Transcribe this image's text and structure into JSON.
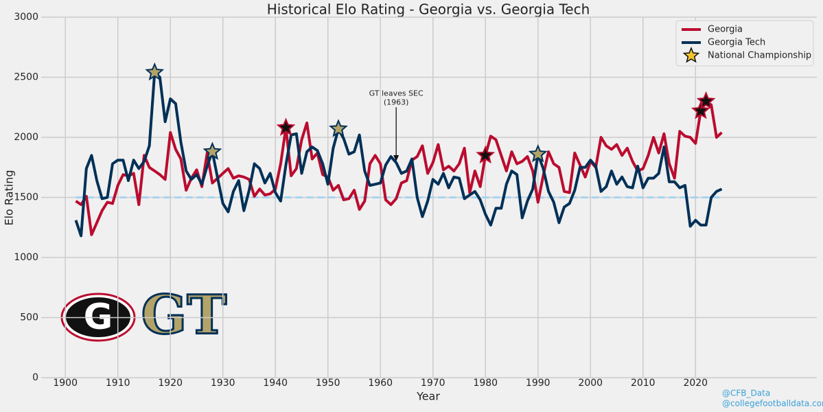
{
  "chart_data": {
    "type": "line",
    "title": "Historical Elo Rating - Georgia vs. Georgia Tech",
    "xlabel": "Year",
    "ylabel": "Elo Rating",
    "xlim": [
      1895.4,
      2043.1
    ],
    "ylim": [
      0,
      3000
    ],
    "xticks": [
      1900,
      1910,
      1920,
      1930,
      1940,
      1950,
      1960,
      1970,
      1980,
      1990,
      2000,
      2010,
      2020
    ],
    "yticks": [
      0,
      500,
      1000,
      1500,
      2000,
      2500,
      3000
    ],
    "grid": true,
    "legend": "upper right",
    "x": [
      1902,
      1903,
      1904,
      1905,
      1906,
      1907,
      1908,
      1909,
      1910,
      1911,
      1912,
      1913,
      1914,
      1915,
      1916,
      1917,
      1918,
      1919,
      1920,
      1921,
      1922,
      1923,
      1924,
      1925,
      1926,
      1927,
      1928,
      1929,
      1930,
      1931,
      1932,
      1933,
      1934,
      1935,
      1936,
      1937,
      1938,
      1939,
      1940,
      1941,
      1942,
      1943,
      1944,
      1945,
      1946,
      1947,
      1948,
      1949,
      1950,
      1951,
      1952,
      1953,
      1954,
      1955,
      1956,
      1957,
      1958,
      1959,
      1960,
      1961,
      1962,
      1963,
      1964,
      1965,
      1966,
      1967,
      1968,
      1969,
      1970,
      1971,
      1972,
      1973,
      1974,
      1975,
      1976,
      1977,
      1978,
      1979,
      1980,
      1981,
      1982,
      1983,
      1984,
      1985,
      1986,
      1987,
      1988,
      1989,
      1990,
      1991,
      1992,
      1993,
      1994,
      1995,
      1996,
      1997,
      1998,
      1999,
      2000,
      2001,
      2002,
      2003,
      2004,
      2005,
      2006,
      2007,
      2008,
      2009,
      2010,
      2011,
      2012,
      2013,
      2014,
      2015,
      2016,
      2017,
      2018,
      2019,
      2020,
      2021,
      2022,
      2023,
      2024,
      2025
    ],
    "series": [
      {
        "name": "Georgia",
        "color": "#ba0c2f",
        "star_fill": "#111111",
        "values": [
          1470,
          1440,
          1510,
          1190,
          1290,
          1390,
          1460,
          1450,
          1600,
          1690,
          1680,
          1700,
          1440,
          1850,
          1750,
          1720,
          1690,
          1650,
          2040,
          1900,
          1820,
          1560,
          1660,
          1730,
          1590,
          1870,
          1620,
          1660,
          1700,
          1740,
          1660,
          1680,
          1670,
          1650,
          1510,
          1570,
          1520,
          1530,
          1570,
          1780,
          2080,
          1680,
          1740,
          1980,
          2120,
          1820,
          1870,
          1690,
          1670,
          1560,
          1600,
          1480,
          1490,
          1560,
          1400,
          1470,
          1780,
          1850,
          1780,
          1480,
          1440,
          1490,
          1620,
          1640,
          1810,
          1840,
          1930,
          1700,
          1790,
          1940,
          1730,
          1760,
          1720,
          1780,
          1910,
          1540,
          1720,
          1590,
          1850,
          2010,
          1980,
          1850,
          1720,
          1880,
          1780,
          1800,
          1840,
          1720,
          1460,
          1680,
          1880,
          1780,
          1750,
          1550,
          1540,
          1870,
          1770,
          1670,
          1800,
          1750,
          2000,
          1930,
          1900,
          1940,
          1850,
          1910,
          1800,
          1720,
          1740,
          1850,
          2000,
          1870,
          2030,
          1780,
          1660,
          2050,
          2010,
          2000,
          1950,
          2220,
          2300,
          2270,
          2000,
          2040
        ],
        "championships": [
          1942,
          1980,
          2021,
          2022
        ]
      },
      {
        "name": "Georgia Tech",
        "color": "#003057",
        "star_fill": "#b3a369",
        "values": [
          1310,
          1180,
          1740,
          1850,
          1640,
          1490,
          1500,
          1780,
          1810,
          1810,
          1640,
          1810,
          1740,
          1800,
          1930,
          2540,
          2500,
          2130,
          2320,
          2280,
          1960,
          1720,
          1650,
          1690,
          1610,
          1760,
          1880,
          1660,
          1450,
          1380,
          1550,
          1640,
          1390,
          1560,
          1780,
          1740,
          1620,
          1700,
          1540,
          1470,
          1770,
          2020,
          2030,
          1700,
          1880,
          1920,
          1890,
          1780,
          1610,
          1910,
          2070,
          1990,
          1860,
          1880,
          2020,
          1720,
          1600,
          1610,
          1620,
          1770,
          1840,
          1790,
          1700,
          1720,
          1820,
          1500,
          1340,
          1470,
          1650,
          1610,
          1700,
          1580,
          1670,
          1660,
          1490,
          1520,
          1550,
          1480,
          1360,
          1270,
          1410,
          1410,
          1610,
          1720,
          1690,
          1330,
          1470,
          1570,
          1860,
          1740,
          1550,
          1460,
          1290,
          1420,
          1450,
          1560,
          1750,
          1750,
          1810,
          1760,
          1550,
          1590,
          1720,
          1610,
          1670,
          1590,
          1580,
          1760,
          1580,
          1660,
          1660,
          1700,
          1920,
          1630,
          1630,
          1580,
          1600,
          1260,
          1310,
          1270,
          1270,
          1500,
          1550,
          1570
        ],
        "championships": [
          1917,
          1928,
          1952,
          1990
        ]
      }
    ],
    "championship_legend": {
      "name": "National Championship",
      "color": "#f2c230"
    },
    "reference_line": {
      "value": 1500,
      "color": "#a6d4f2"
    },
    "annotation": {
      "lines": [
        "GT leaves SEC",
        "(1963)"
      ],
      "x": 1963,
      "y": 1800,
      "text_y": 2250
    },
    "logos": [
      "G",
      "GT"
    ],
    "credits": [
      "@CFB_Data",
      "@collegefootballdata.com"
    ]
  }
}
